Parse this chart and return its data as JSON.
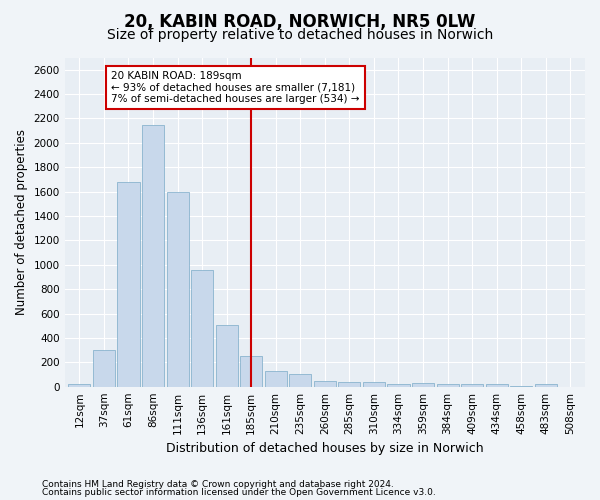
{
  "title1": "20, KABIN ROAD, NORWICH, NR5 0LW",
  "title2": "Size of property relative to detached houses in Norwich",
  "xlabel": "Distribution of detached houses by size in Norwich",
  "ylabel": "Number of detached properties",
  "categories": [
    "12sqm",
    "37sqm",
    "61sqm",
    "86sqm",
    "111sqm",
    "136sqm",
    "161sqm",
    "185sqm",
    "210sqm",
    "235sqm",
    "260sqm",
    "285sqm",
    "310sqm",
    "334sqm",
    "359sqm",
    "384sqm",
    "409sqm",
    "434sqm",
    "458sqm",
    "483sqm",
    "508sqm"
  ],
  "bar_heights": [
    25,
    300,
    1680,
    2150,
    1600,
    960,
    505,
    250,
    125,
    100,
    50,
    40,
    35,
    20,
    30,
    20,
    25,
    20,
    5,
    25,
    0
  ],
  "bar_color": "#c8d8eb",
  "bar_edge_color": "#7aaac8",
  "vline_color": "#cc0000",
  "annotation_text": "20 KABIN ROAD: 189sqm\n← 93% of detached houses are smaller (7,181)\n7% of semi-detached houses are larger (534) →",
  "annotation_box_facecolor": "#ffffff",
  "annotation_box_edgecolor": "#cc0000",
  "ylim": [
    0,
    2700
  ],
  "yticks": [
    0,
    200,
    400,
    600,
    800,
    1000,
    1200,
    1400,
    1600,
    1800,
    2000,
    2200,
    2400,
    2600
  ],
  "footnote1": "Contains HM Land Registry data © Crown copyright and database right 2024.",
  "footnote2": "Contains public sector information licensed under the Open Government Licence v3.0.",
  "bg_color": "#f0f4f8",
  "plot_bg_color": "#e8eef4",
  "grid_color": "#ffffff",
  "title1_fontsize": 12,
  "title2_fontsize": 10,
  "xlabel_fontsize": 9,
  "ylabel_fontsize": 8.5,
  "tick_fontsize": 7.5,
  "annot_fontsize": 7.5,
  "footnote_fontsize": 6.5
}
